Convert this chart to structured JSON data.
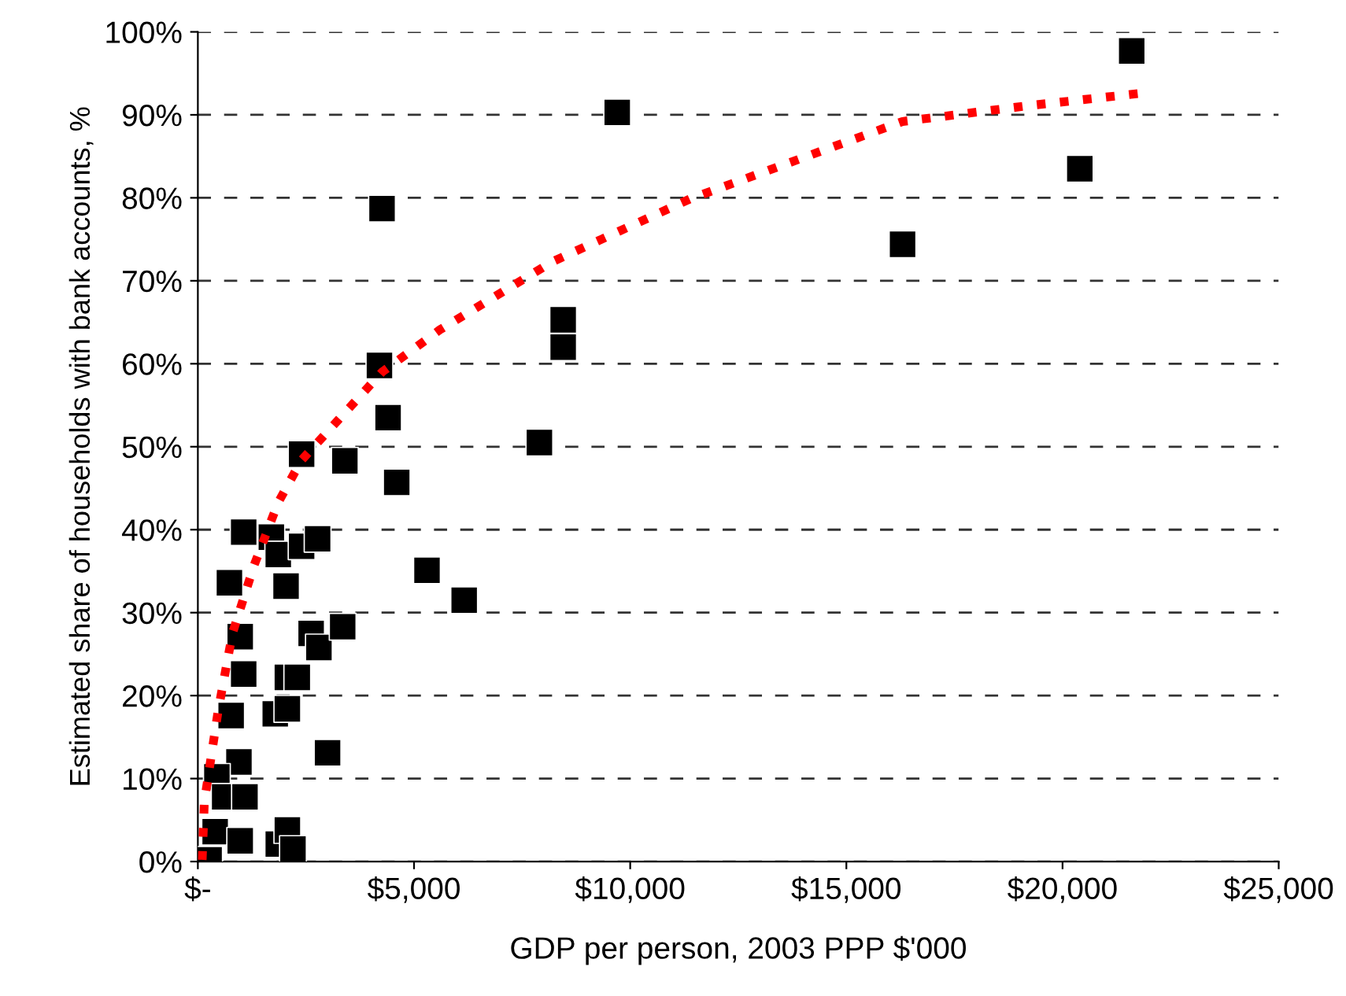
{
  "chart_data": {
    "type": "scatter",
    "xlabel": "GDP per person, 2003 PPP $'000",
    "ylabel": "Estimated share of households with bank accounts, %",
    "xlim": [
      0,
      25000
    ],
    "ylim": [
      0,
      100
    ],
    "xticks": [
      {
        "value": 0,
        "label": "$-"
      },
      {
        "value": 5000,
        "label": "$5,000"
      },
      {
        "value": 10000,
        "label": "$10,000"
      },
      {
        "value": 15000,
        "label": "$15,000"
      },
      {
        "value": 20000,
        "label": "$20,000"
      },
      {
        "value": 25000,
        "label": "$25,000"
      }
    ],
    "yticks": [
      {
        "value": 0,
        "label": "0%"
      },
      {
        "value": 10,
        "label": "10%"
      },
      {
        "value": 20,
        "label": "20%"
      },
      {
        "value": 30,
        "label": "30%"
      },
      {
        "value": 40,
        "label": "40%"
      },
      {
        "value": 50,
        "label": "50%"
      },
      {
        "value": 60,
        "label": "60%"
      },
      {
        "value": 70,
        "label": "70%"
      },
      {
        "value": 80,
        "label": "80%"
      },
      {
        "value": 90,
        "label": "90%"
      },
      {
        "value": 100,
        "label": "100%"
      }
    ],
    "grid": "y",
    "marker": "square",
    "series": [
      {
        "color": "#000000",
        "x": [
          21600,
          20400,
          16300,
          9700,
          4260,
          8450,
          8450,
          4200,
          4400,
          7900,
          2400,
          3400,
          4600,
          1060,
          1700,
          1860,
          2400,
          2770,
          730,
          2040,
          5300,
          6160,
          980,
          2620,
          2800,
          3350,
          1060,
          2070,
          2300,
          770,
          1790,
          2070,
          3000,
          950,
          440,
          620,
          1090,
          400,
          980,
          260,
          1860,
          2070,
          2200
        ],
        "values": [
          97.7,
          83.5,
          74.4,
          90.3,
          78.7,
          65.3,
          62.0,
          59.8,
          53.5,
          50.5,
          49.1,
          48.3,
          45.7,
          39.7,
          39.1,
          37.0,
          38.0,
          38.9,
          33.6,
          33.2,
          35.1,
          31.5,
          27.1,
          27.5,
          25.8,
          28.3,
          22.6,
          22.2,
          22.2,
          17.6,
          17.8,
          18.4,
          13.1,
          12.0,
          10.2,
          7.8,
          7.8,
          3.6,
          2.5,
          0.2,
          2.1,
          3.8,
          1.5
        ]
      },
      {
        "type": "line",
        "color": "#ff0000",
        "line_style": "dotted",
        "marker": "none",
        "x": [
          100,
          150,
          470,
          800,
          1300,
          1860,
          2400,
          4260,
          5600,
          8200,
          11400,
          16300,
          19200,
          21800
        ],
        "values": [
          0.2,
          7.2,
          18.2,
          27.5,
          35.7,
          43.3,
          48.4,
          59.0,
          64.1,
          72.3,
          79.9,
          89.2,
          91.1,
          92.6
        ]
      }
    ]
  }
}
